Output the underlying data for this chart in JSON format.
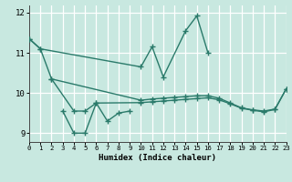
{
  "xlabel": "Humidex (Indice chaleur)",
  "bg_color": "#c8e8e0",
  "grid_color": "#ffffff",
  "line_color": "#2a7a6a",
  "xlim": [
    0,
    23
  ],
  "ylim": [
    8.78,
    12.18
  ],
  "yticks": [
    9,
    10,
    11,
    12
  ],
  "xticks": [
    0,
    1,
    2,
    3,
    4,
    5,
    6,
    7,
    8,
    9,
    10,
    11,
    12,
    13,
    14,
    15,
    16,
    17,
    18,
    19,
    20,
    21,
    22,
    23
  ],
  "curve1_x": [
    0,
    1,
    10,
    11,
    12,
    14,
    15,
    16
  ],
  "curve1_y": [
    11.35,
    11.1,
    10.65,
    11.15,
    10.4,
    11.55,
    11.92,
    11.0
  ],
  "curve2_x": [
    2,
    10,
    11,
    12,
    13,
    14,
    15,
    16,
    17,
    18,
    19,
    20,
    21,
    22,
    23
  ],
  "curve2_y": [
    10.35,
    9.82,
    9.85,
    9.87,
    9.89,
    9.91,
    9.93,
    9.93,
    9.87,
    9.75,
    9.63,
    9.58,
    9.55,
    9.6,
    10.1
  ],
  "curve3_x": [
    0,
    1,
    2,
    4,
    5,
    6,
    10,
    11,
    12,
    13,
    14,
    15,
    16,
    17,
    18,
    19,
    20,
    21,
    22,
    23
  ],
  "curve3_y": [
    11.35,
    11.1,
    10.35,
    9.55,
    9.55,
    9.75,
    9.76,
    9.78,
    9.8,
    9.82,
    9.84,
    9.86,
    9.88,
    9.83,
    9.73,
    9.62,
    9.57,
    9.53,
    9.59,
    10.1
  ],
  "curve4_x": [
    3,
    4,
    5,
    6,
    7,
    8,
    9
  ],
  "curve4_y": [
    9.55,
    9.0,
    9.0,
    9.75,
    9.3,
    9.5,
    9.55
  ]
}
